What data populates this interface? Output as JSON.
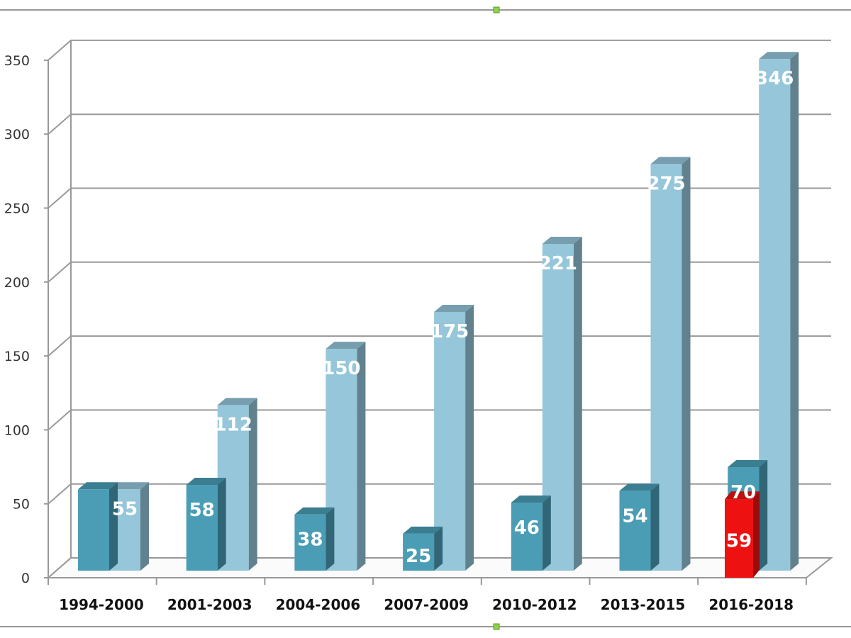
{
  "chart_data": {
    "type": "bar",
    "style": "3d-clustered-column",
    "title": "",
    "xlabel": "",
    "ylabel": "",
    "ylim": [
      0,
      350
    ],
    "yticks": [
      0,
      50,
      100,
      150,
      200,
      250,
      300,
      350
    ],
    "grid": true,
    "legend": "none",
    "categories": [
      "1994-2000",
      "2001-2003",
      "2004-2006",
      "2007-2009",
      "2010-2012",
      "2013-2015",
      "2016-2018"
    ],
    "series": [
      {
        "name": "Series 1",
        "color": "#4a9db5",
        "values": [
          55,
          58,
          38,
          25,
          46,
          54,
          70
        ],
        "labels": [
          "",
          "58",
          "38",
          "25",
          "46",
          "54",
          "70"
        ]
      },
      {
        "name": "Series 2",
        "color": "#95c6da",
        "values": [
          55,
          112,
          150,
          175,
          221,
          275,
          346
        ],
        "labels": [
          "55",
          "112",
          "150",
          "175",
          "221",
          "275",
          "346"
        ]
      }
    ],
    "highlight": {
      "category": "2016-2018",
      "value": 59,
      "label": "59",
      "color": "#ee1111"
    }
  }
}
